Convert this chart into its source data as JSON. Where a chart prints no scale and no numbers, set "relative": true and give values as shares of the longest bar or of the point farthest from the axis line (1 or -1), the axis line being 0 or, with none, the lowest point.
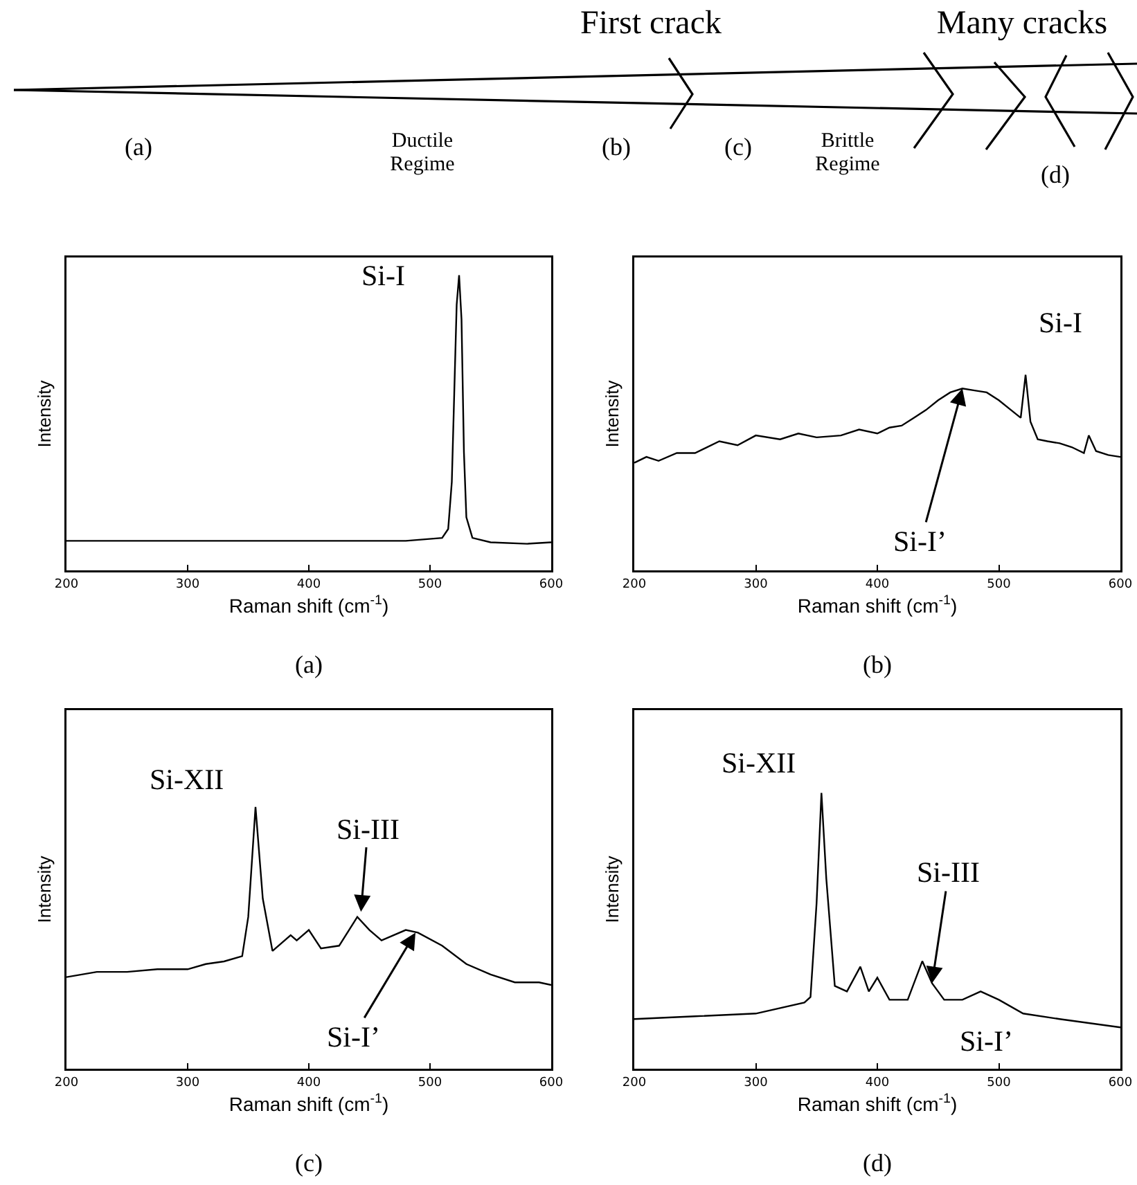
{
  "chart_data": [
    {
      "type": "other",
      "annotations": [
        "First crack",
        "Many cracks",
        "(a)",
        "Ductile\nRegime",
        "(b)",
        "(c)",
        "Brittle\nRegime",
        "(d)"
      ]
    },
    {
      "type": "line",
      "relative": true,
      "title": "(a)",
      "xlabel": "Raman shift (cm$^{-1}$)",
      "ylabel": "Intensity",
      "xlim": [
        200,
        600
      ],
      "xticks": [
        200,
        300,
        400,
        500,
        600
      ],
      "color": "#000000",
      "x": [
        200,
        250,
        300,
        350,
        400,
        450,
        480,
        510,
        515,
        518,
        520,
        522,
        524,
        526,
        528,
        530,
        535,
        550,
        580,
        600
      ],
      "values": [
        0.1,
        0.1,
        0.1,
        0.1,
        0.1,
        0.1,
        0.1,
        0.11,
        0.14,
        0.3,
        0.6,
        0.9,
        1.0,
        0.85,
        0.4,
        0.18,
        0.11,
        0.095,
        0.09,
        0.095
      ],
      "annotations": [
        {
          "text": "Si-I",
          "x": 524,
          "y": 1.0
        }
      ]
    },
    {
      "type": "line",
      "relative": true,
      "title": "(b)",
      "xlabel": "Raman shift (cm$^{-1}$)",
      "ylabel": "Intensity",
      "xlim": [
        200,
        600
      ],
      "xticks": [
        200,
        300,
        400,
        500,
        600
      ],
      "color": "#000000",
      "x": [
        200,
        210,
        220,
        235,
        250,
        270,
        285,
        300,
        320,
        335,
        350,
        370,
        385,
        400,
        410,
        420,
        430,
        440,
        450,
        460,
        470,
        480,
        490,
        500,
        510,
        518,
        522,
        526,
        532,
        540,
        550,
        560,
        570,
        574,
        580,
        590,
        600
      ],
      "values": [
        0.55,
        0.58,
        0.56,
        0.6,
        0.6,
        0.66,
        0.64,
        0.69,
        0.67,
        0.7,
        0.68,
        0.69,
        0.72,
        0.7,
        0.73,
        0.74,
        0.78,
        0.82,
        0.87,
        0.91,
        0.93,
        0.92,
        0.91,
        0.87,
        0.82,
        0.78,
        1.0,
        0.76,
        0.67,
        0.66,
        0.65,
        0.63,
        0.6,
        0.69,
        0.61,
        0.59,
        0.58
      ],
      "annotations": [
        {
          "text": "Si-I",
          "x": 522,
          "y": 1.0
        },
        {
          "text": "Si-I’",
          "x": 470,
          "y": 0.93
        }
      ]
    },
    {
      "type": "line",
      "relative": true,
      "title": "(c)",
      "xlabel": "Raman shift (cm$^{-1}$)",
      "ylabel": "Intensity",
      "xlim": [
        200,
        600
      ],
      "xticks": [
        200,
        300,
        400,
        500,
        600
      ],
      "color": "#000000",
      "x": [
        200,
        225,
        250,
        275,
        300,
        315,
        330,
        345,
        350,
        356,
        362,
        370,
        385,
        390,
        400,
        410,
        425,
        440,
        450,
        460,
        480,
        490,
        510,
        530,
        550,
        570,
        590,
        600
      ],
      "values": [
        0.35,
        0.37,
        0.37,
        0.38,
        0.38,
        0.4,
        0.41,
        0.43,
        0.58,
        1.0,
        0.65,
        0.45,
        0.51,
        0.49,
        0.53,
        0.46,
        0.47,
        0.58,
        0.53,
        0.49,
        0.53,
        0.52,
        0.47,
        0.4,
        0.36,
        0.33,
        0.33,
        0.32
      ],
      "annotations": [
        {
          "text": "Si-XII",
          "x": 356,
          "y": 1.0
        },
        {
          "text": "Si-III",
          "x": 443,
          "y": 0.6
        },
        {
          "text": "Si-I’",
          "x": 488,
          "y": 0.52
        }
      ]
    },
    {
      "type": "line",
      "relative": true,
      "title": "(d)",
      "xlabel": "Raman shift (cm$^{-1}$)",
      "ylabel": "Intensity",
      "xlim": [
        200,
        600
      ],
      "xticks": [
        200,
        300,
        400,
        500,
        600
      ],
      "color": "#000000",
      "x": [
        200,
        250,
        300,
        340,
        345,
        350,
        354,
        358,
        365,
        375,
        386,
        393,
        400,
        410,
        425,
        437,
        445,
        455,
        470,
        485,
        500,
        520,
        550,
        600
      ],
      "values": [
        0.18,
        0.19,
        0.2,
        0.24,
        0.26,
        0.6,
        1.0,
        0.69,
        0.3,
        0.28,
        0.37,
        0.28,
        0.33,
        0.25,
        0.25,
        0.39,
        0.31,
        0.25,
        0.25,
        0.28,
        0.25,
        0.2,
        0.18,
        0.15
      ],
      "annotations": [
        {
          "text": "Si-XII",
          "x": 354,
          "y": 1.0
        },
        {
          "text": "Si-III",
          "x": 445,
          "y": 0.31
        },
        {
          "text": "Si-I’",
          "x": 490,
          "y": 0.25
        }
      ]
    }
  ]
}
